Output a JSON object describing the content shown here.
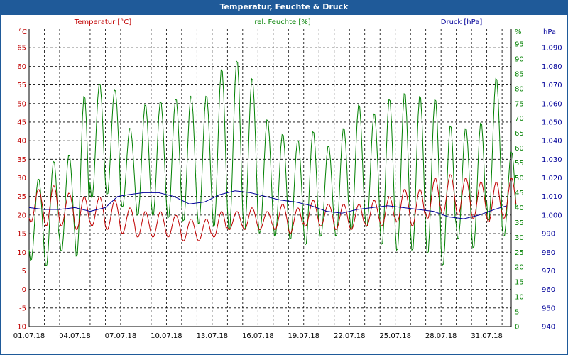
{
  "window": {
    "title": "Temperatur, Feuchte & Druck"
  },
  "colors": {
    "temperature": "#c00000",
    "humidity": "#008000",
    "pressure": "#000099",
    "grid": "#000000",
    "title_bg": "#1f5a99"
  },
  "chart_data": {
    "type": "line",
    "title": "Temperatur, Feuchte & Druck",
    "x_ticks": [
      "01.07.18",
      "04.07.18",
      "07.07.18",
      "10.07.18",
      "13.07.18",
      "16.07.18",
      "19.07.18",
      "22.07.18",
      "25.07.18",
      "28.07.18",
      "31.07.18"
    ],
    "xlim": [
      0,
      31.6
    ],
    "axes": {
      "left": {
        "unit": "°C",
        "min": -10,
        "max": 70,
        "ticks": [
          "-10",
          "-5",
          "0",
          "5",
          "10",
          "15",
          "20",
          "25",
          "30",
          "35",
          "40",
          "45",
          "50",
          "55",
          "60",
          "65"
        ]
      },
      "middle": {
        "unit": "%",
        "min": 0,
        "max": 100,
        "ticks": [
          "0",
          "5",
          "10",
          "15",
          "20",
          "25",
          "30",
          "35",
          "40",
          "45",
          "50",
          "55",
          "60",
          "65",
          "70",
          "75",
          "80",
          "85",
          "90",
          "95"
        ]
      },
      "right": {
        "unit": "hPa",
        "min": 940,
        "max": 1100,
        "ticks": [
          "940",
          "950",
          "960",
          "970",
          "980",
          "990",
          "1.000",
          "1.010",
          "1.020",
          "1.030",
          "1.040",
          "1.050",
          "1.060",
          "1.070",
          "1.080",
          "1.090"
        ]
      }
    },
    "series": [
      {
        "name": "Temperatur [°C]",
        "axis": "left",
        "tmax": [
          27,
          28,
          26,
          25,
          25,
          24,
          22,
          21,
          21,
          20,
          19,
          19,
          21,
          21,
          22,
          21,
          23,
          22,
          24,
          23,
          23,
          23,
          24,
          25,
          27,
          27,
          30,
          31,
          30,
          29,
          29,
          30
        ],
        "tmin": [
          18,
          17,
          17,
          16,
          17,
          16,
          15,
          14,
          14,
          14,
          13,
          13,
          14,
          16,
          16,
          16,
          16,
          15,
          17,
          17,
          16,
          16,
          17,
          17,
          18,
          17,
          19,
          20,
          20,
          19,
          18,
          19
        ]
      },
      {
        "name": "rel. Feuchte [%]",
        "axis": "middle",
        "hmax": [
          50,
          56,
          58,
          78,
          82,
          80,
          67,
          75,
          76,
          77,
          78,
          78,
          87,
          90,
          84,
          70,
          65,
          63,
          66,
          61,
          67,
          75,
          72,
          77,
          79,
          78,
          77,
          68,
          67,
          69,
          84,
          59
        ],
        "hmin": [
          22,
          20,
          25,
          23,
          43,
          44,
          40,
          37,
          37,
          36,
          35,
          34,
          33,
          32,
          32,
          31,
          30,
          29,
          27,
          30,
          30,
          32,
          33,
          27,
          25,
          25,
          24,
          20,
          29,
          26,
          35,
          30
        ]
      },
      {
        "name": "Druck [hPa]",
        "axis": "right",
        "points": [
          [
            0,
            1004
          ],
          [
            1,
            1003
          ],
          [
            2,
            1003
          ],
          [
            3,
            1004
          ],
          [
            4,
            1002
          ],
          [
            5,
            1004
          ],
          [
            5.8,
            1010
          ],
          [
            6.5,
            1011
          ],
          [
            7.5,
            1012
          ],
          [
            8.5,
            1012
          ],
          [
            9.5,
            1010
          ],
          [
            10.5,
            1006
          ],
          [
            11.5,
            1007
          ],
          [
            12.5,
            1011
          ],
          [
            13.5,
            1013
          ],
          [
            14.5,
            1012
          ],
          [
            15.5,
            1010
          ],
          [
            16.5,
            1008
          ],
          [
            17.5,
            1007
          ],
          [
            18.5,
            1005
          ],
          [
            19.5,
            1002
          ],
          [
            20.5,
            1001
          ],
          [
            21.5,
            1003
          ],
          [
            22.5,
            1004
          ],
          [
            23.5,
            1005
          ],
          [
            24.5,
            1004
          ],
          [
            25.5,
            1003
          ],
          [
            26.5,
            1002
          ],
          [
            27.5,
            999
          ],
          [
            28.5,
            998
          ],
          [
            29.5,
            1000
          ],
          [
            30.5,
            1003
          ],
          [
            31.3,
            1005
          ]
        ]
      }
    ]
  }
}
